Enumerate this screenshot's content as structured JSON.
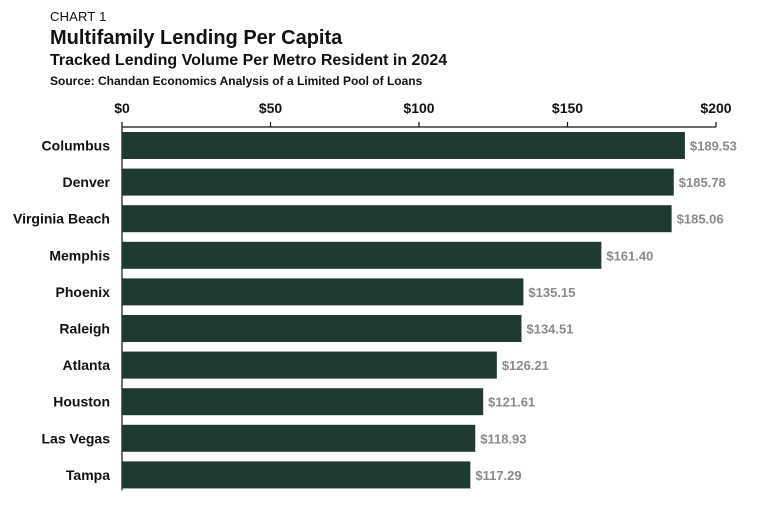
{
  "header": {
    "eyebrow": "CHART 1",
    "title": "Multifamily Lending Per Capita",
    "subtitle": "Tracked Lending Volume Per Metro Resident in 2024",
    "source": "Source: Chandan Economics Analysis of a Limited Pool of Loans"
  },
  "colors": {
    "bar": "#1f3b31",
    "value_label": "#8a8a8a",
    "axis": "#111111"
  },
  "chart_data": {
    "type": "bar",
    "orientation": "horizontal",
    "categories": [
      "Columbus",
      "Denver",
      "Virginia Beach",
      "Memphis",
      "Phoenix",
      "Raleigh",
      "Atlanta",
      "Houston",
      "Las Vegas",
      "Tampa"
    ],
    "values": [
      189.53,
      185.78,
      185.06,
      161.4,
      135.15,
      134.51,
      126.21,
      121.61,
      118.93,
      117.29
    ],
    "value_labels": [
      "$189.53",
      "$185.78",
      "$185.06",
      "$161.40",
      "$135.15",
      "$134.51",
      "$126.21",
      "$121.61",
      "$118.93",
      "$117.29"
    ],
    "xlim": [
      0,
      200
    ],
    "xticks": [
      0,
      50,
      100,
      150,
      200
    ],
    "xtick_labels": [
      "$0",
      "$50",
      "$100",
      "$150",
      "$200"
    ],
    "axis_position": "top",
    "grid": false,
    "legend": false
  }
}
